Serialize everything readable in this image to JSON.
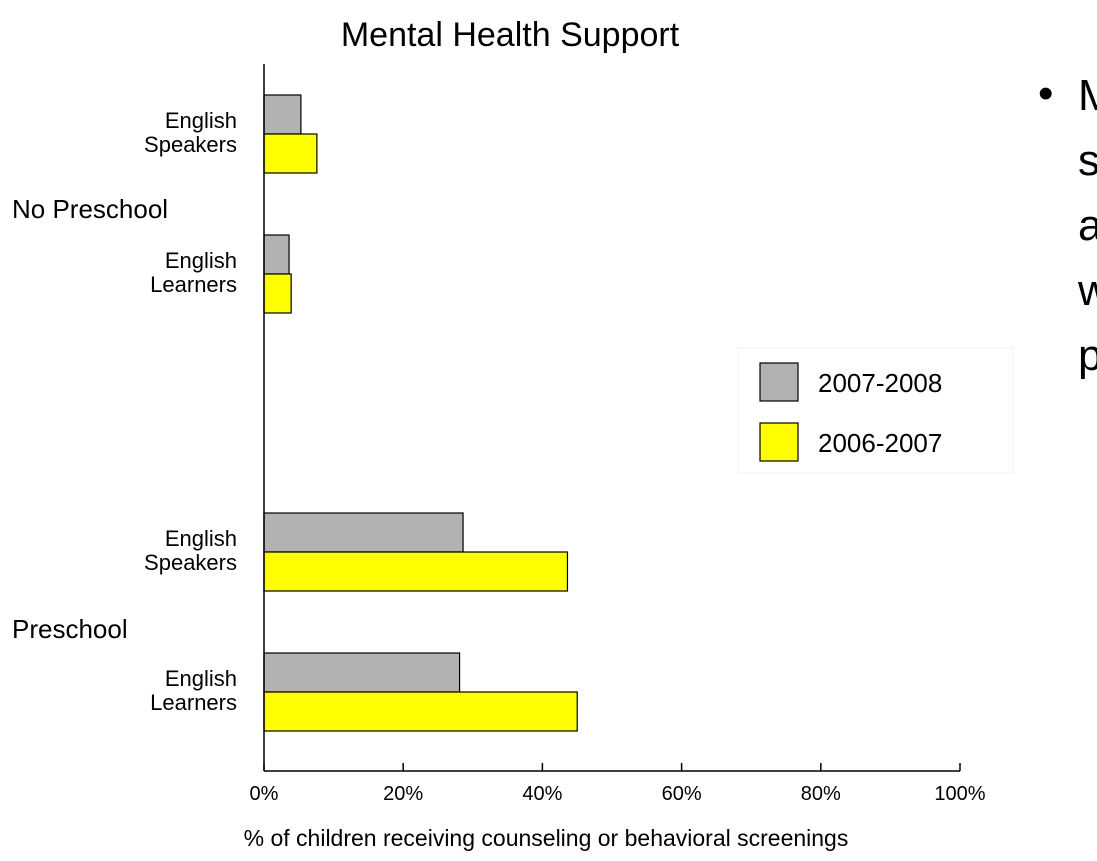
{
  "chart_data": {
    "type": "bar",
    "orientation": "horizontal",
    "title": "Mental Health Support",
    "xlabel": "% of children receiving counseling or behavioral screenings",
    "ylabel": "",
    "xlim": [
      0,
      100
    ],
    "x_ticks": [
      "0%",
      "20%",
      "40%",
      "60%",
      "80%",
      "100%"
    ],
    "groups": [
      {
        "label": "No Preschool",
        "categories": [
          {
            "label_lines": [
              "English",
              "Speakers"
            ],
            "values": [
              5.3,
              7.6
            ]
          },
          {
            "label_lines": [
              "English",
              "Learners"
            ],
            "values": [
              3.6,
              3.9
            ]
          }
        ]
      },
      {
        "label": "Preschool",
        "categories": [
          {
            "label_lines": [
              "English",
              "Speakers"
            ],
            "values": [
              28.6,
              43.6
            ]
          },
          {
            "label_lines": [
              "English",
              "Learners"
            ],
            "values": [
              28.1,
              45.0
            ]
          }
        ]
      }
    ],
    "series": [
      {
        "name": "2007-2008",
        "color": "#b2b2b2"
      },
      {
        "name": "2006-2007",
        "color": "#ffff00"
      }
    ],
    "legend_position": "right",
    "grid": false
  },
  "side_text": {
    "bullet": "•",
    "lines": [
      "M",
      "s",
      "a",
      "w",
      "p"
    ]
  }
}
